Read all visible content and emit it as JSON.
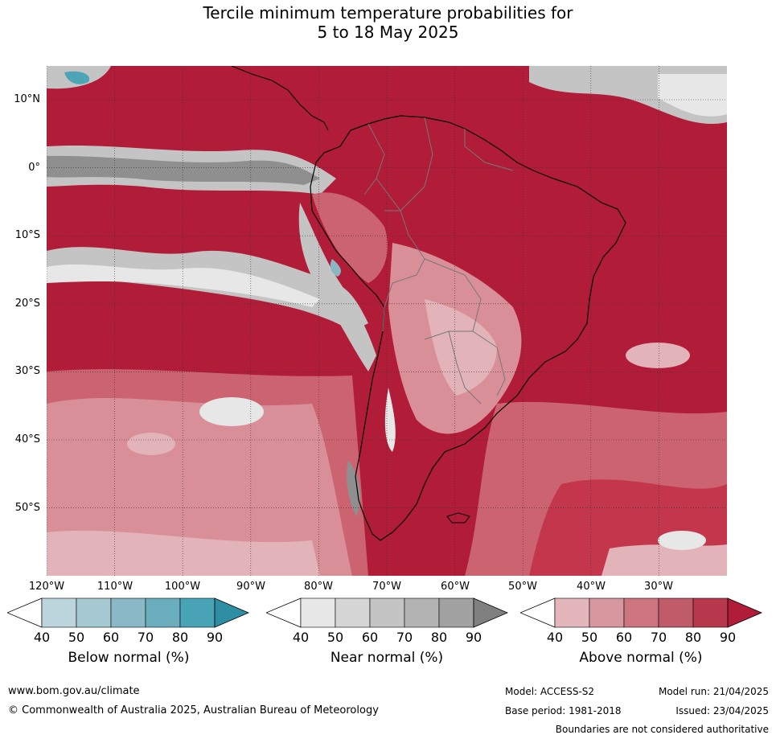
{
  "title": {
    "line1": "Tercile minimum temperature probabilities for",
    "line2": "5 to 18 May 2025"
  },
  "map": {
    "region": "South America",
    "lat_labels": [
      "10°N",
      "0°",
      "10°S",
      "20°S",
      "30°S",
      "40°S",
      "50°S"
    ],
    "lon_labels": [
      "120°W",
      "110°W",
      "100°W",
      "90°W",
      "80°W",
      "70°W",
      "60°W",
      "50°W",
      "40°W",
      "30°W"
    ],
    "colors": {
      "above_90": "#b11c38",
      "above_80": "#c3364c",
      "above_70": "#cc6371",
      "above_60": "#d98f98",
      "above_50": "#e2b3b8",
      "near_40": "#e7e7e7",
      "near_60": "#c4c4c4",
      "near_90": "#8f8f8f",
      "below_60": "#8ab7c4",
      "below_80": "#4fa5b8"
    }
  },
  "legends": [
    {
      "title": "Below normal (%)",
      "ticks": [
        "40",
        "50",
        "60",
        "70",
        "80",
        "90"
      ],
      "colors": [
        "#ffffff",
        "#bcd4db",
        "#a6c8d1",
        "#8ab8c6",
        "#6aaebe",
        "#48a3b6",
        "#2e8ea3"
      ]
    },
    {
      "title": "Near normal (%)",
      "ticks": [
        "40",
        "50",
        "60",
        "70",
        "80",
        "90"
      ],
      "colors": [
        "#ffffff",
        "#e7e7e7",
        "#d6d6d6",
        "#c4c4c4",
        "#b3b3b3",
        "#a1a1a1",
        "#808080"
      ]
    },
    {
      "title": "Above normal (%)",
      "ticks": [
        "40",
        "50",
        "60",
        "70",
        "80",
        "90"
      ],
      "colors": [
        "#ffffff",
        "#e2b6bb",
        "#d6979f",
        "#cc7580",
        "#c05b69",
        "#b8394e",
        "#b11c38"
      ]
    }
  ],
  "footer": {
    "website": "www.bom.gov.au/climate",
    "copyright": "© Commonwealth of Australia 2025, Australian Bureau of Meteorology",
    "model": "Model: ACCESS-S2",
    "base_period": "Base period: 1981-2018",
    "model_run": "Model run: 21/04/2025",
    "issued": "Issued: 23/04/2025",
    "disclaimer": "Boundaries are not considered authoritative"
  }
}
